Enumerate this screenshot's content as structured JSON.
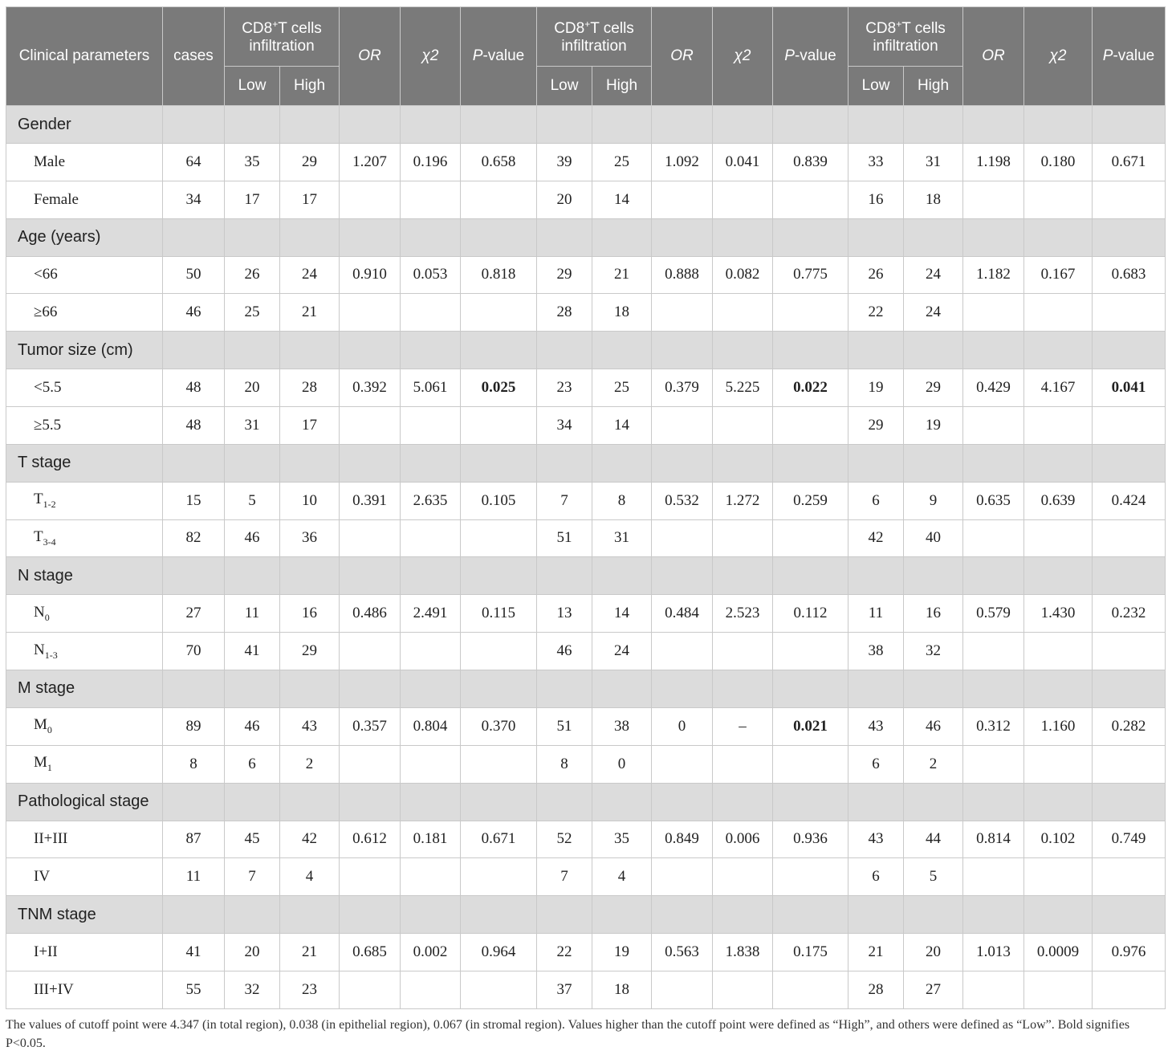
{
  "header": {
    "clinical_parameters": "Clinical parameters",
    "cases": "cases",
    "group_label": "CD8",
    "group_sup": "+",
    "group_rest": "T cells infiltration",
    "low": "Low",
    "high": "High",
    "or": "OR",
    "chi2": "χ2",
    "pvalue_italic": "P",
    "pvalue_rest": "-value"
  },
  "sections": [
    {
      "title": "Gender",
      "rows": [
        {
          "label": "Male",
          "sub": "",
          "v": [
            "64",
            "35",
            "29",
            "1.207",
            "0.196",
            "0.658",
            "39",
            "25",
            "1.092",
            "0.041",
            "0.839",
            "33",
            "31",
            "1.198",
            "0.180",
            "0.671"
          ],
          "bold": []
        },
        {
          "label": "Female",
          "sub": "",
          "v": [
            "34",
            "17",
            "17",
            "",
            "",
            "",
            "20",
            "14",
            "",
            "",
            "",
            "16",
            "18",
            "",
            "",
            ""
          ],
          "bold": []
        }
      ]
    },
    {
      "title": "Age (years)",
      "rows": [
        {
          "label": "<66",
          "sub": "",
          "v": [
            "50",
            "26",
            "24",
            "0.910",
            "0.053",
            "0.818",
            "29",
            "21",
            "0.888",
            "0.082",
            "0.775",
            "26",
            "24",
            "1.182",
            "0.167",
            "0.683"
          ],
          "bold": []
        },
        {
          "label": "≥66",
          "sub": "",
          "v": [
            "46",
            "25",
            "21",
            "",
            "",
            "",
            "28",
            "18",
            "",
            "",
            "",
            "22",
            "24",
            "",
            "",
            ""
          ],
          "bold": []
        }
      ]
    },
    {
      "title": "Tumor size (cm)",
      "rows": [
        {
          "label": "<5.5",
          "sub": "",
          "v": [
            "48",
            "20",
            "28",
            "0.392",
            "5.061",
            "0.025",
            "23",
            "25",
            "0.379",
            "5.225",
            "0.022",
            "19",
            "29",
            "0.429",
            "4.167",
            "0.041"
          ],
          "bold": [
            5,
            10,
            15
          ]
        },
        {
          "label": "≥5.5",
          "sub": "",
          "v": [
            "48",
            "31",
            "17",
            "",
            "",
            "",
            "34",
            "14",
            "",
            "",
            "",
            "29",
            "19",
            "",
            "",
            ""
          ],
          "bold": []
        }
      ]
    },
    {
      "title": "T stage",
      "rows": [
        {
          "label": "T",
          "sub": "1-2",
          "v": [
            "15",
            "5",
            "10",
            "0.391",
            "2.635",
            "0.105",
            "7",
            "8",
            "0.532",
            "1.272",
            "0.259",
            "6",
            "9",
            "0.635",
            "0.639",
            "0.424"
          ],
          "bold": []
        },
        {
          "label": "T",
          "sub": "3-4",
          "v": [
            "82",
            "46",
            "36",
            "",
            "",
            "",
            "51",
            "31",
            "",
            "",
            "",
            "42",
            "40",
            "",
            "",
            ""
          ],
          "bold": []
        }
      ]
    },
    {
      "title": "N stage",
      "rows": [
        {
          "label": "N",
          "sub": "0",
          "v": [
            "27",
            "11",
            "16",
            "0.486",
            "2.491",
            "0.115",
            "13",
            "14",
            "0.484",
            "2.523",
            "0.112",
            "11",
            "16",
            "0.579",
            "1.430",
            "0.232"
          ],
          "bold": []
        },
        {
          "label": "N",
          "sub": "1-3",
          "v": [
            "70",
            "41",
            "29",
            "",
            "",
            "",
            "46",
            "24",
            "",
            "",
            "",
            "38",
            "32",
            "",
            "",
            ""
          ],
          "bold": []
        }
      ]
    },
    {
      "title": "M stage",
      "rows": [
        {
          "label": "M",
          "sub": "0",
          "v": [
            "89",
            "46",
            "43",
            "0.357",
            "0.804",
            "0.370",
            "51",
            "38",
            "0",
            "–",
            "0.021",
            "43",
            "46",
            "0.312",
            "1.160",
            "0.282"
          ],
          "bold": [
            10
          ]
        },
        {
          "label": "M",
          "sub": "1",
          "v": [
            "8",
            "6",
            "2",
            "",
            "",
            "",
            "8",
            "0",
            "",
            "",
            "",
            "6",
            "2",
            "",
            "",
            ""
          ],
          "bold": []
        }
      ]
    },
    {
      "title": "Pathological stage",
      "rows": [
        {
          "label": "II+III",
          "sub": "",
          "v": [
            "87",
            "45",
            "42",
            "0.612",
            "0.181",
            "0.671",
            "52",
            "35",
            "0.849",
            "0.006",
            "0.936",
            "43",
            "44",
            "0.814",
            "0.102",
            "0.749"
          ],
          "bold": []
        },
        {
          "label": "IV",
          "sub": "",
          "v": [
            "11",
            "7",
            "4",
            "",
            "",
            "",
            "7",
            "4",
            "",
            "",
            "",
            "6",
            "5",
            "",
            "",
            ""
          ],
          "bold": []
        }
      ]
    },
    {
      "title": "TNM stage",
      "rows": [
        {
          "label": "I+II",
          "sub": "",
          "v": [
            "41",
            "20",
            "21",
            "0.685",
            "0.002",
            "0.964",
            "22",
            "19",
            "0.563",
            "1.838",
            "0.175",
            "21",
            "20",
            "1.013",
            "0.0009",
            "0.976"
          ],
          "bold": []
        },
        {
          "label": "III+IV",
          "sub": "",
          "v": [
            "55",
            "32",
            "23",
            "",
            "",
            "",
            "37",
            "18",
            "",
            "",
            "",
            "28",
            "27",
            "",
            "",
            ""
          ],
          "bold": []
        }
      ]
    }
  ],
  "footnote": "The values of cutoff point were 4.347 (in total region), 0.038 (in epithelial region), 0.067 (in stromal region). Values higher than the cutoff point were defined as “High”, and others were defined as “Low”. Bold signifies P<0.05."
}
